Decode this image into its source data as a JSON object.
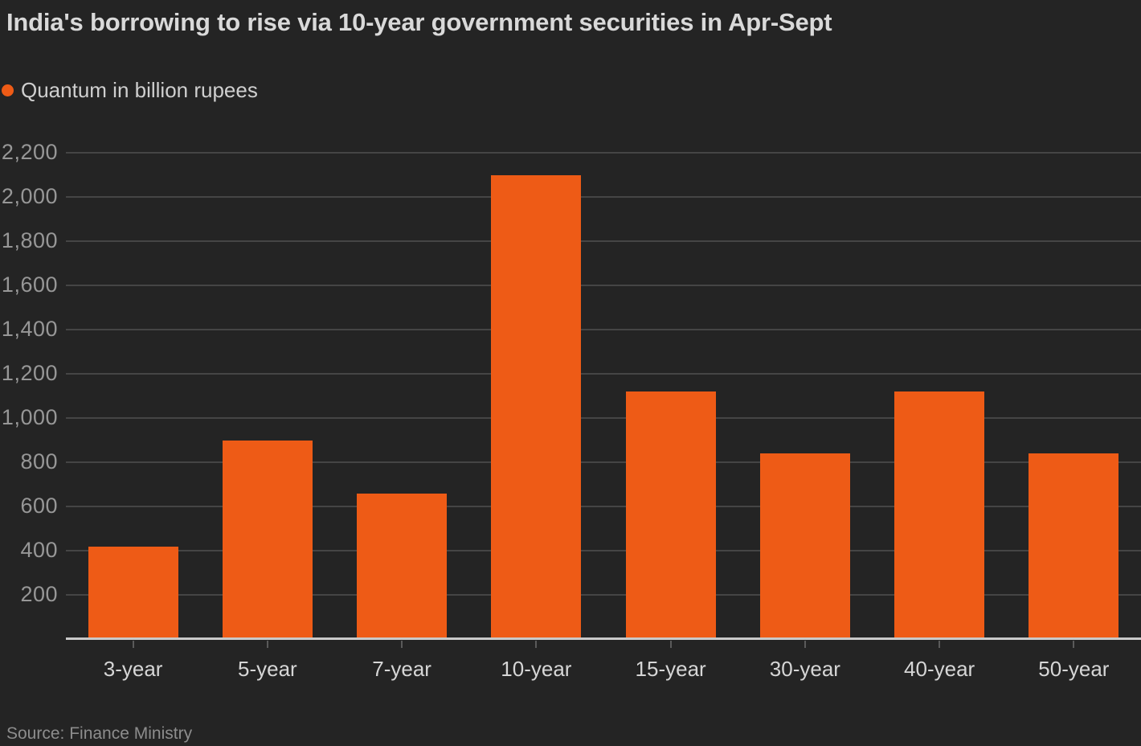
{
  "chart_data": {
    "type": "bar",
    "title": "India's borrowing to rise via 10-year government securities in Apr-Sept",
    "legend": "Quantum in billion rupees",
    "categories": [
      "3-year",
      "5-year",
      "7-year",
      "10-year",
      "15-year",
      "30-year",
      "40-year",
      "50-year"
    ],
    "values": [
      420,
      900,
      660,
      2100,
      1120,
      840,
      1120,
      840
    ],
    "ylim": [
      0,
      2200
    ],
    "ytick_values": [
      200,
      400,
      600,
      800,
      1000,
      1200,
      1400,
      1600,
      1800,
      2000,
      2200
    ],
    "ytick_labels": [
      "200",
      "400",
      "600",
      "800",
      "1,000",
      "1,200",
      "1,400",
      "1,600",
      "1,800",
      "2,000",
      "2,200"
    ],
    "xlabel": "",
    "ylabel": "",
    "grid": true,
    "legend_position": "top-left",
    "source": "Source: Finance Ministry"
  },
  "colors": {
    "background": "#242424",
    "bar": "#ee5b16",
    "grid": "#454545",
    "axis": "#c9c9c9",
    "title_text": "#d9d9d9",
    "legend_text": "#cfcfcf",
    "ytick_text": "#979797",
    "xtick_text": "#d6d6d6",
    "source_text": "#8d8d8d"
  }
}
